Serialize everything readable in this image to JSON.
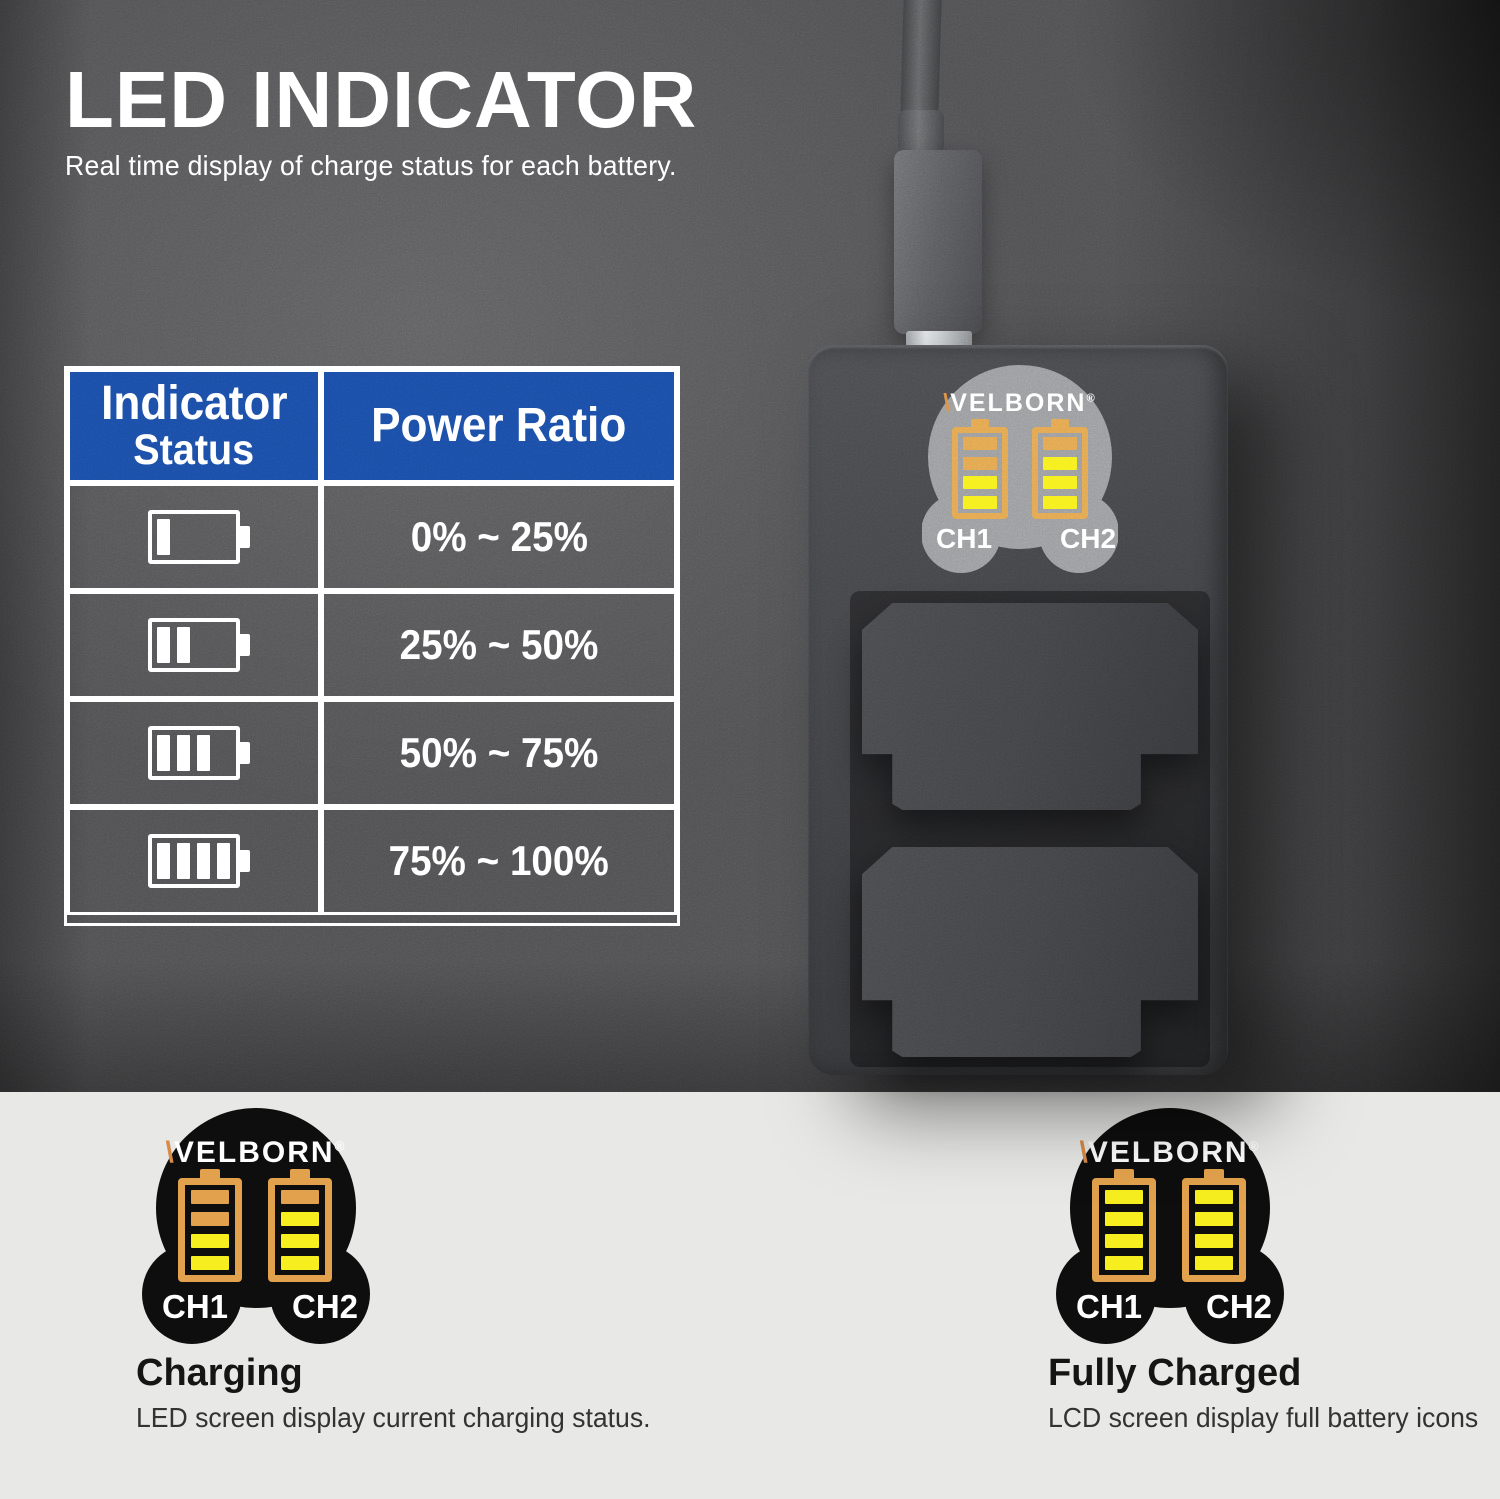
{
  "header": {
    "title": "LED INDICATOR",
    "subtitle": "Real time display of charge status for each battery."
  },
  "table": {
    "header": {
      "col1_line1": "Indicator",
      "col1_line2": "Status",
      "col2": "Power Ratio"
    },
    "rows": [
      {
        "bars": 1,
        "ratio": "0% ~ 25%"
      },
      {
        "bars": 2,
        "ratio": "25% ~ 50%"
      },
      {
        "bars": 3,
        "ratio": "50% ~ 75%"
      },
      {
        "bars": 4,
        "ratio": "75% ~ 100%"
      }
    ]
  },
  "brandmark": {
    "name": "WELBORN",
    "slash": "\\",
    "name_rest": "VELBORN",
    "reg": "®"
  },
  "device": {
    "display": {
      "channels": [
        "CH1",
        "CH2"
      ],
      "ch1_segments": [
        "dim",
        "dim",
        "lit",
        "lit"
      ],
      "ch2_segments": [
        "dim",
        "lit",
        "lit",
        "lit"
      ]
    }
  },
  "badges": [
    {
      "title": "Charging",
      "description": "LED screen display current charging status.",
      "channels": [
        "CH1",
        "CH2"
      ],
      "ch1_segments": [
        "dim",
        "dim",
        "lit",
        "lit"
      ],
      "ch2_segments": [
        "dim",
        "lit",
        "lit",
        "lit"
      ]
    },
    {
      "title": "Fully Charged",
      "description": "LCD screen display full battery icons",
      "channels": [
        "CH1",
        "CH2"
      ],
      "ch1_segments": [
        "lit",
        "lit",
        "lit",
        "lit"
      ],
      "ch2_segments": [
        "lit",
        "lit",
        "lit",
        "lit"
      ]
    }
  ],
  "colors": {
    "accent_blue": "#1a4aa2",
    "led_orange": "#e2a24d",
    "led_yellow": "#f6ee1e",
    "screen_gray": "#97989b",
    "badge_black": "#0e0e0e",
    "bg_dark": "#4e4e50",
    "bg_light": "#e8e8e6",
    "logo_slash": "#d98a45"
  }
}
